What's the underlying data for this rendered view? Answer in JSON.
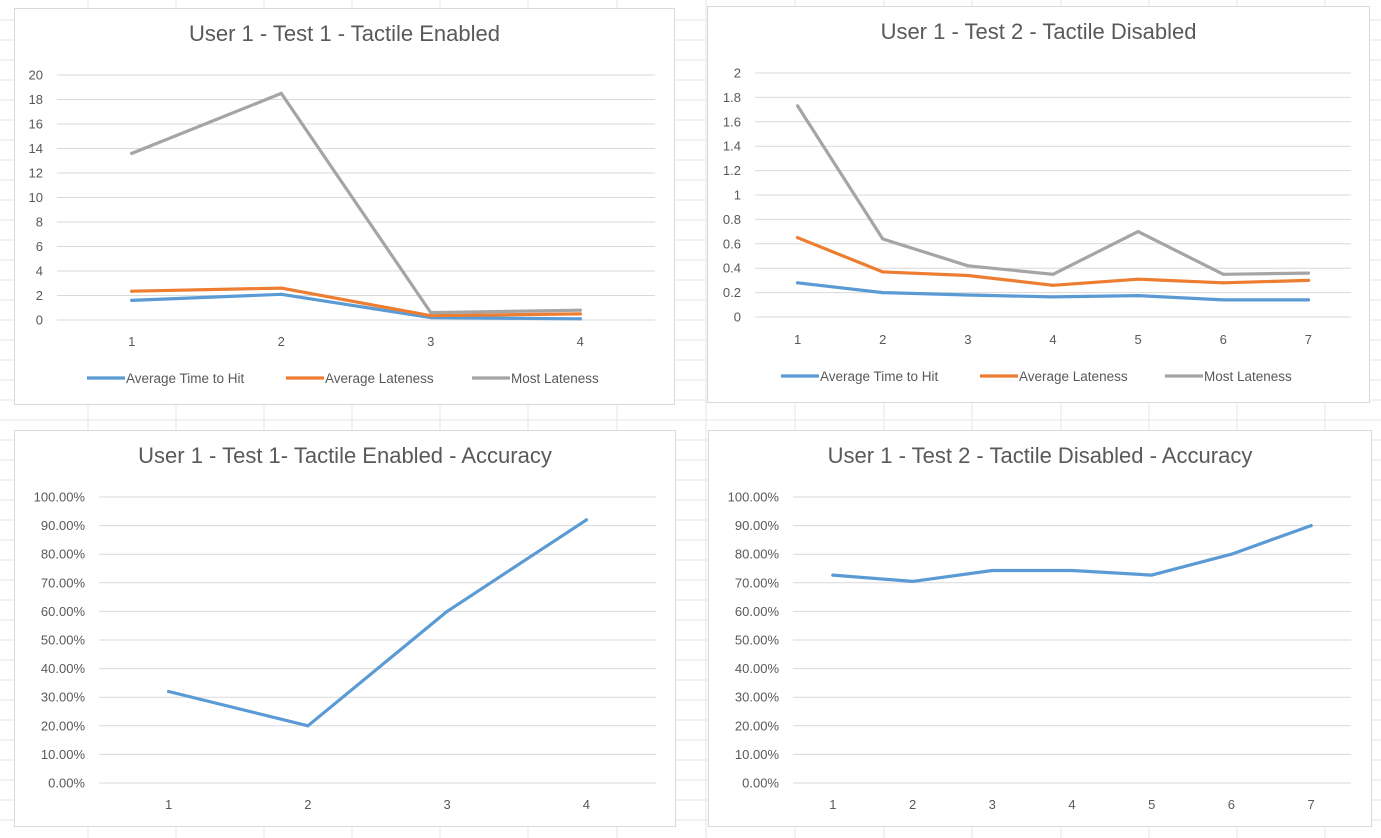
{
  "colors": {
    "background": "#ffffff",
    "gridline": "#d9d9d9",
    "sheet_gridline": "#e6e6e6",
    "text": "#595959",
    "avg_time": "#5b9bd5",
    "avg_lateness": "#ed7d31",
    "most_lateness": "#a5a5a5"
  },
  "chart_data": [
    {
      "type": "line",
      "title": "User 1 - Test 1 - Tactile Enabled",
      "x": [
        1,
        2,
        3,
        4
      ],
      "ylim": [
        0,
        20
      ],
      "yticks": [
        0,
        2,
        4,
        6,
        8,
        10,
        12,
        14,
        16,
        18,
        20
      ],
      "ytick_labels": [
        "0",
        "2",
        "4",
        "6",
        "8",
        "10",
        "12",
        "14",
        "16",
        "18",
        "20"
      ],
      "grid": true,
      "legend": "bottom",
      "series": [
        {
          "name": "Average Time to Hit",
          "color": "#5b9bd5",
          "values": [
            1.6,
            2.1,
            0.2,
            0.1
          ]
        },
        {
          "name": "Average Lateness",
          "color": "#ed7d31",
          "values": [
            2.35,
            2.6,
            0.35,
            0.5
          ]
        },
        {
          "name": "Most Lateness",
          "color": "#a5a5a5",
          "values": [
            13.6,
            18.5,
            0.6,
            0.8
          ]
        }
      ]
    },
    {
      "type": "line",
      "title": "User 1 - Test 2 - Tactile Disabled",
      "x": [
        1,
        2,
        3,
        4,
        5,
        6,
        7
      ],
      "ylim": [
        0,
        2
      ],
      "yticks": [
        0,
        0.2,
        0.4,
        0.6,
        0.8,
        1,
        1.2,
        1.4,
        1.6,
        1.8,
        2
      ],
      "ytick_labels": [
        "0",
        "0.2",
        "0.4",
        "0.6",
        "0.8",
        "1",
        "1.2",
        "1.4",
        "1.6",
        "1.8",
        "2"
      ],
      "grid": true,
      "legend": "bottom",
      "series": [
        {
          "name": "Average Time to Hit",
          "color": "#5b9bd5",
          "values": [
            0.28,
            0.2,
            0.18,
            0.165,
            0.175,
            0.14,
            0.14
          ]
        },
        {
          "name": "Average Lateness",
          "color": "#ed7d31",
          "values": [
            0.65,
            0.37,
            0.34,
            0.26,
            0.31,
            0.28,
            0.3
          ]
        },
        {
          "name": "Most Lateness",
          "color": "#a5a5a5",
          "values": [
            1.73,
            0.64,
            0.42,
            0.35,
            0.7,
            0.35,
            0.36
          ]
        }
      ]
    },
    {
      "type": "line",
      "title": "User 1 - Test 1- Tactile Enabled - Accuracy",
      "x": [
        1,
        2,
        3,
        4
      ],
      "ylim": [
        0,
        1
      ],
      "yticks": [
        0,
        0.1,
        0.2,
        0.3,
        0.4,
        0.5,
        0.6,
        0.7,
        0.8,
        0.9,
        1
      ],
      "ytick_labels": [
        "0.00%",
        "10.00%",
        "20.00%",
        "30.00%",
        "40.00%",
        "50.00%",
        "60.00%",
        "70.00%",
        "80.00%",
        "90.00%",
        "100.00%"
      ],
      "grid": true,
      "legend": "none",
      "series": [
        {
          "color": "#5b9bd5",
          "values": [
            0.32,
            0.2,
            0.6,
            0.92
          ]
        }
      ]
    },
    {
      "type": "line",
      "title": "User 1 - Test 2 - Tactile Disabled - Accuracy",
      "x": [
        1,
        2,
        3,
        4,
        5,
        6,
        7
      ],
      "ylim": [
        0,
        1
      ],
      "yticks": [
        0,
        0.1,
        0.2,
        0.3,
        0.4,
        0.5,
        0.6,
        0.7,
        0.8,
        0.9,
        1
      ],
      "ytick_labels": [
        "0.00%",
        "10.00%",
        "20.00%",
        "30.00%",
        "40.00%",
        "50.00%",
        "60.00%",
        "70.00%",
        "80.00%",
        "90.00%",
        "100.00%"
      ],
      "grid": true,
      "legend": "none",
      "series": [
        {
          "color": "#5b9bd5",
          "values": [
            0.727,
            0.705,
            0.743,
            0.743,
            0.727,
            0.8,
            0.9
          ]
        }
      ]
    }
  ]
}
